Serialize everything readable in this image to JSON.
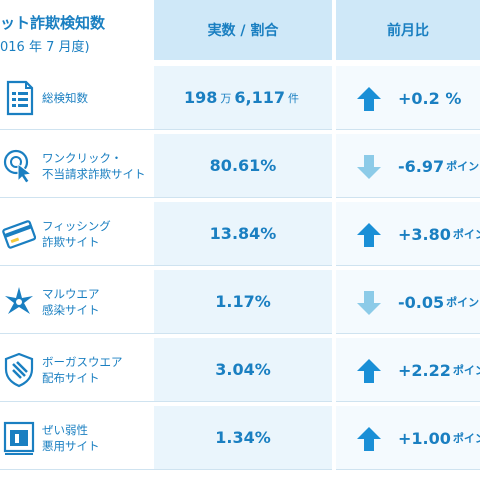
{
  "header": {
    "title_line1": "ット詐欺検知数",
    "title_line2": "016 年 7 月度)",
    "col_value": "実数 / 割合",
    "col_ratio": "前月比"
  },
  "rows": [
    {
      "icon": "document-list-icon",
      "name_line1": "総検知数",
      "name_line2": "",
      "value_main": "198",
      "value_unit1": "万",
      "value_rest": "6,117",
      "value_unit2": "件",
      "trend": "up",
      "ratio": "+0.2 %",
      "ratio_unit": ""
    },
    {
      "icon": "cursor-click-icon",
      "name_line1": "ワンクリック・",
      "name_line2": "不当請求詐欺サイト",
      "value_main": "80.61%",
      "trend": "down",
      "ratio": "-6.97",
      "ratio_unit": "ポイン"
    },
    {
      "icon": "credit-card-icon",
      "name_line1": "フィッシング",
      "name_line2": "詐欺サイト",
      "value_main": "13.84%",
      "trend": "up",
      "ratio": "+3.80",
      "ratio_unit": "ポイン"
    },
    {
      "icon": "malware-star-icon",
      "name_line1": "マルウエア",
      "name_line2": "感染サイト",
      "value_main": "1.17%",
      "trend": "down",
      "ratio": "-0.05",
      "ratio_unit": "ポイン"
    },
    {
      "icon": "shield-icon",
      "name_line1": "ボーガスウエア",
      "name_line2": "配布サイト",
      "value_main": "3.04%",
      "trend": "up",
      "ratio": "+2.22",
      "ratio_unit": "ポイン"
    },
    {
      "icon": "vulnerable-page-icon",
      "name_line1": "ぜい弱性",
      "name_line2": "悪用サイト",
      "value_main": "1.34%",
      "trend": "up",
      "ratio": "+1.00",
      "ratio_unit": "ポイン"
    }
  ],
  "colors": {
    "accent": "#1a7fc1",
    "up_arrow": "#1a8fd6",
    "down_arrow": "#8ccbe8",
    "header_bg": "#cfe8f8",
    "value_bg": "#eaf5fc"
  }
}
